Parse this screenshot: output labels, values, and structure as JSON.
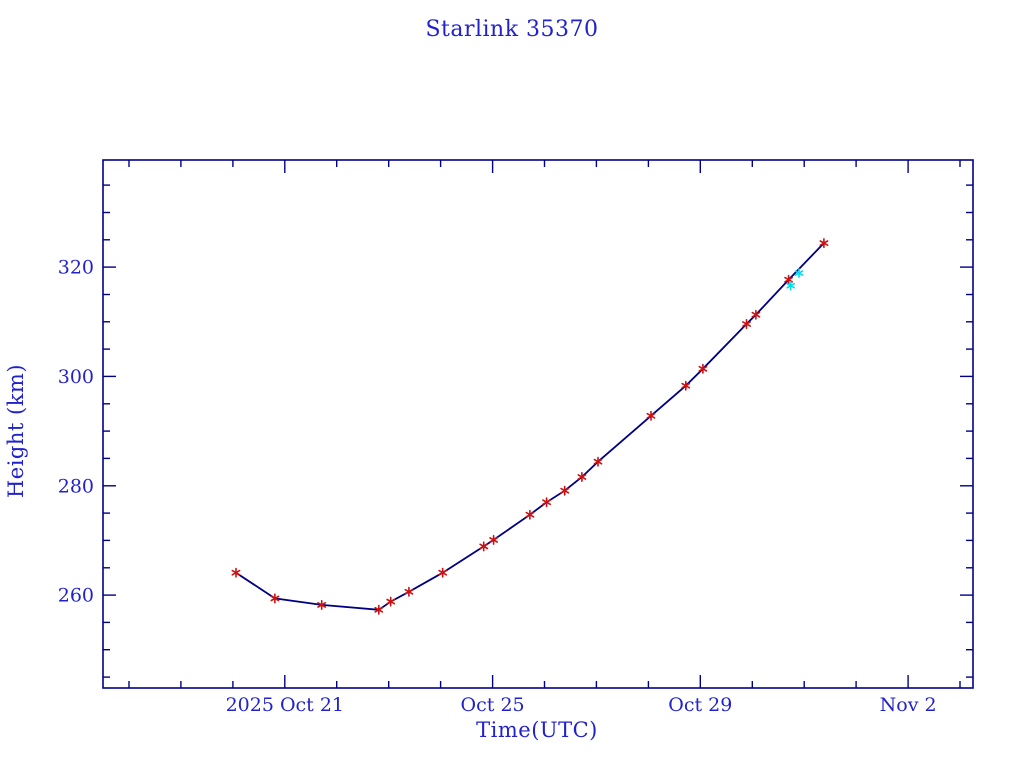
{
  "chart_data": {
    "type": "line",
    "title": "Starlink 35370",
    "xlabel": "Time(UTC)",
    "ylabel": "Height (km)",
    "x_unit": "day of October 2025 (32 = Nov 1, 33 = Nov 2)",
    "xlim": [
      17.5,
      34.25
    ],
    "ylim": [
      243.0,
      339.6
    ],
    "grid": false,
    "legend": "none",
    "x_minor_step_days": 1,
    "y_minor_step_km": 5,
    "x_ticks": [
      {
        "x": 21,
        "label": "2025 Oct 21"
      },
      {
        "x": 25,
        "label": "Oct 25"
      },
      {
        "x": 29,
        "label": "Oct 29"
      },
      {
        "x": 33,
        "label": "Nov  2"
      }
    ],
    "y_ticks": [
      {
        "y": 260,
        "label": "260"
      },
      {
        "y": 280,
        "label": "280"
      },
      {
        "y": 300,
        "label": "300"
      },
      {
        "y": 320,
        "label": "320"
      }
    ],
    "series": [
      {
        "name": "observed-height",
        "marker": "asterisk",
        "marker_size": 4.2,
        "color": "#cc1111",
        "line": true,
        "line_color": "#000080",
        "points": [
          [
            20.06,
            264.1
          ],
          [
            20.81,
            259.4
          ],
          [
            21.71,
            258.2
          ],
          [
            22.81,
            257.3
          ],
          [
            23.04,
            258.8
          ],
          [
            23.39,
            260.6
          ],
          [
            24.04,
            264.1
          ],
          [
            24.83,
            268.9
          ],
          [
            25.02,
            270.1
          ],
          [
            25.72,
            274.7
          ],
          [
            26.04,
            277.0
          ],
          [
            26.39,
            279.1
          ],
          [
            26.72,
            281.6
          ],
          [
            27.03,
            284.4
          ],
          [
            28.05,
            292.8
          ],
          [
            28.72,
            298.3
          ],
          [
            29.05,
            301.4
          ],
          [
            29.89,
            309.6
          ],
          [
            30.07,
            311.3
          ],
          [
            30.7,
            317.7
          ],
          [
            31.38,
            324.4
          ]
        ]
      },
      {
        "name": "latest-elements",
        "marker": "asterisk",
        "marker_size": 4.0,
        "color": "#00dcee",
        "line": false,
        "points": [
          [
            30.74,
            316.6
          ],
          [
            30.9,
            318.9
          ]
        ]
      }
    ],
    "colors": {
      "background": "#ffffff",
      "axis": "#00008b",
      "line": "#000080",
      "marker_red": "#cc1111",
      "marker_cyan": "#00dcee",
      "text_blue": "#2222cc"
    }
  }
}
